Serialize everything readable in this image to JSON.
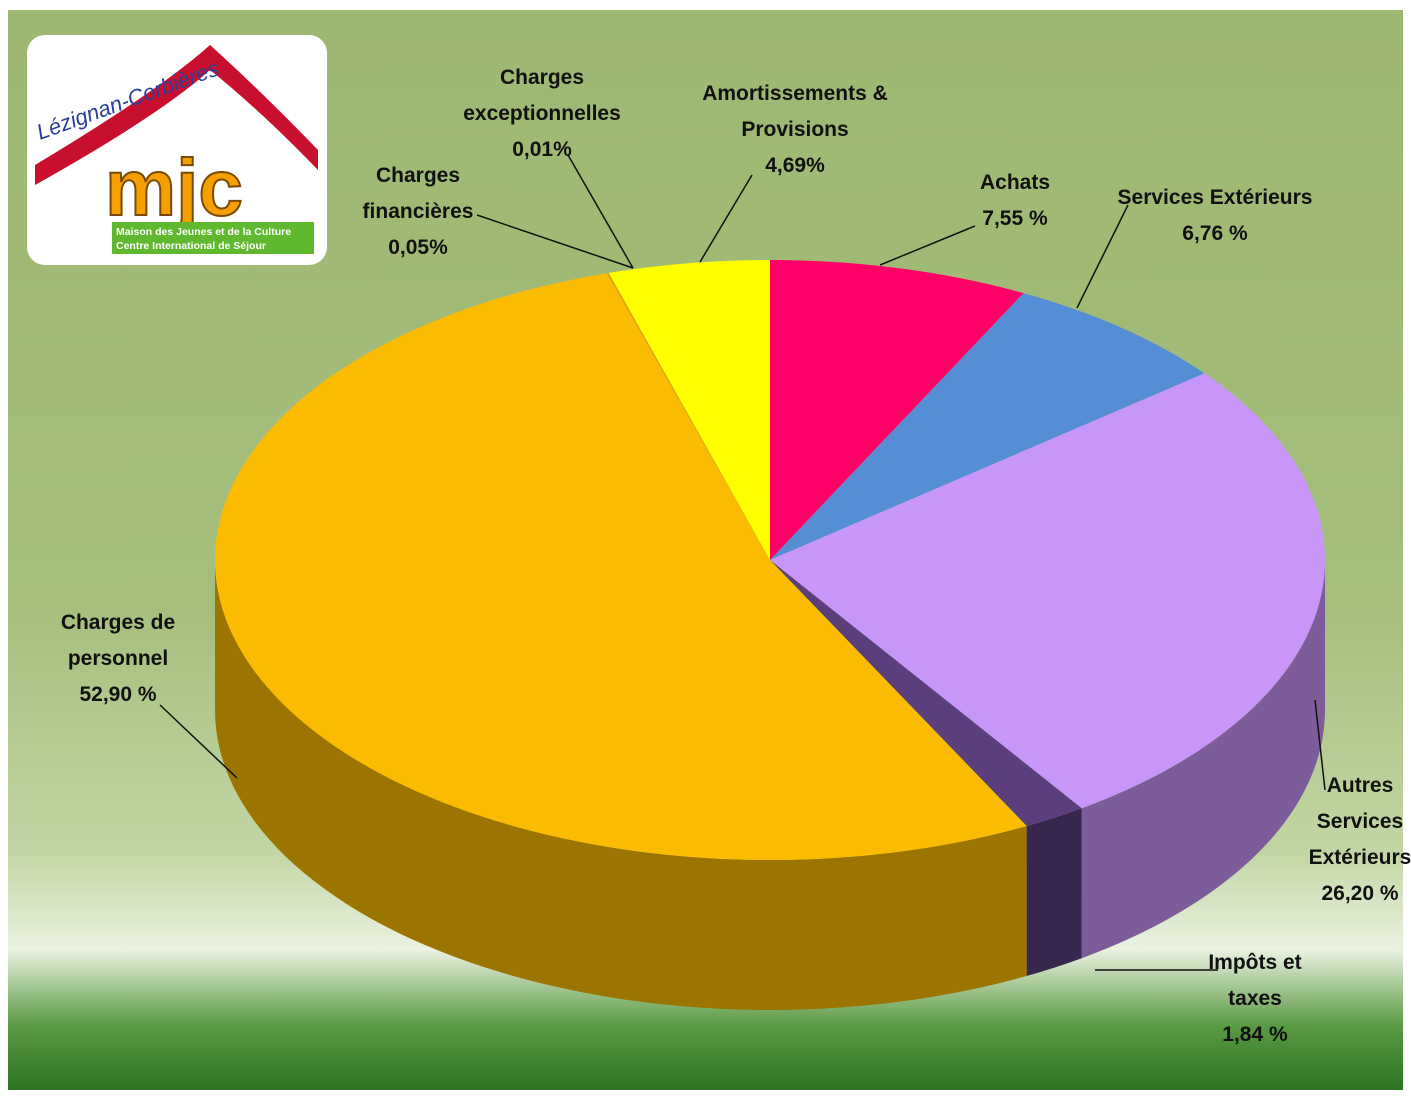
{
  "chart_data": {
    "type": "pie",
    "categories": [
      "Achats",
      "Services Extérieurs",
      "Autres Services Extérieurs",
      "Impôts et taxes",
      "Charges de personnel",
      "Charges financières",
      "Charges exceptionnelles",
      "Amortissements & Provisions"
    ],
    "values": [
      7.55,
      6.76,
      26.2,
      1.84,
      52.9,
      0.05,
      0.01,
      4.69
    ],
    "value_labels": [
      "7,55 %",
      "6,76 %",
      "26,20 %",
      "1,84 %",
      "52,90 %",
      "0,05%",
      "0,01%",
      "4,69%"
    ],
    "colors": [
      "#ff0066",
      "#558ed5",
      "#c896f8",
      "#5a3f7c",
      "#fbbb00",
      "#e8a000",
      "#f0c000",
      "#ffff00"
    ]
  },
  "logo": {
    "town": "Lézignan-Corbières",
    "name": "mjc",
    "line1": "Maison des Jeunes et de la Culture",
    "line2": "Centre International de Séjour"
  }
}
